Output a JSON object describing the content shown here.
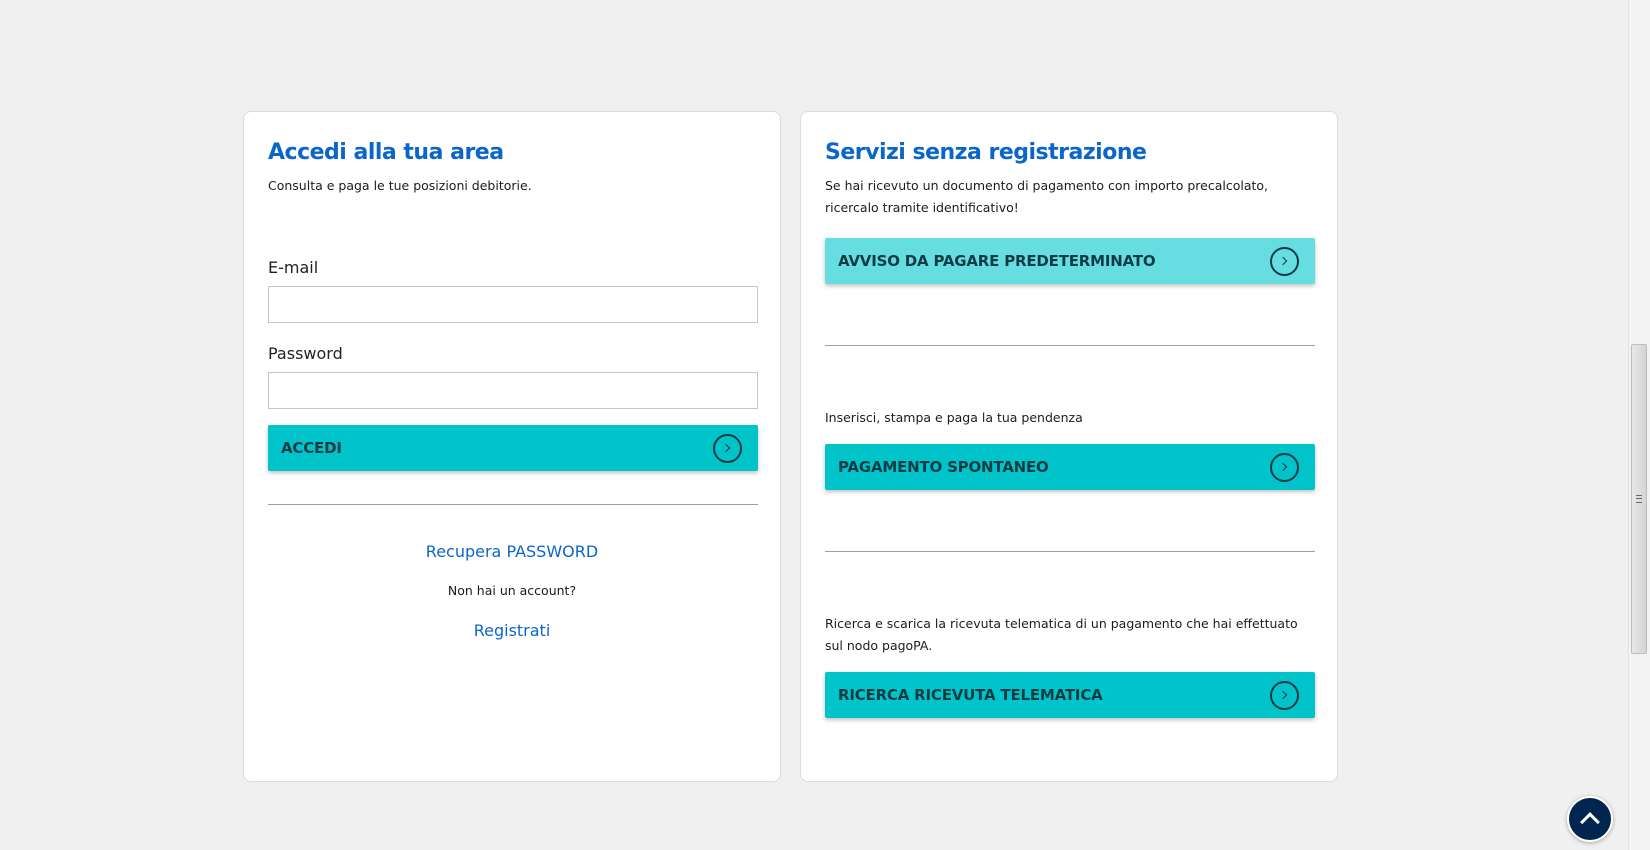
{
  "login": {
    "title": "Accedi alla tua area",
    "description": "Consulta e paga le tue posizioni debitorie.",
    "email_label": "E-mail",
    "email_value": "",
    "password_label": "Password",
    "password_value": "",
    "submit_label": "ACCEDI",
    "recover_label": "Recupera PASSWORD",
    "no_account_text": "Non hai un account?",
    "register_label": "Registrati"
  },
  "services": {
    "title": "Servizi senza registrazione",
    "items": [
      {
        "description": "Se hai ricevuto un documento di pagamento con importo precalcolato, ricercalo tramite identificativo!",
        "button_label": "AVVISO DA PAGARE PREDETERMINATO",
        "color": "#66dde0"
      },
      {
        "description": "Inserisci, stampa e paga la tua pendenza",
        "button_label": "PAGAMENTO SPONTANEO",
        "color": "#00c4ca"
      },
      {
        "description": "Ricerca e scarica la ricevuta telematica di un pagamento che hai effettuato sul nodo pagoPA.",
        "button_label": "RICERCA RICEVUTA TELEMATICA",
        "color": "#00c4ca"
      }
    ]
  },
  "colors": {
    "accent": "#0b66c9",
    "button": "#00c4ca",
    "back_to_top": "#002650"
  },
  "icons": {
    "button": "chevron-right-circle-icon",
    "back_to_top": "chevron-up-icon"
  }
}
